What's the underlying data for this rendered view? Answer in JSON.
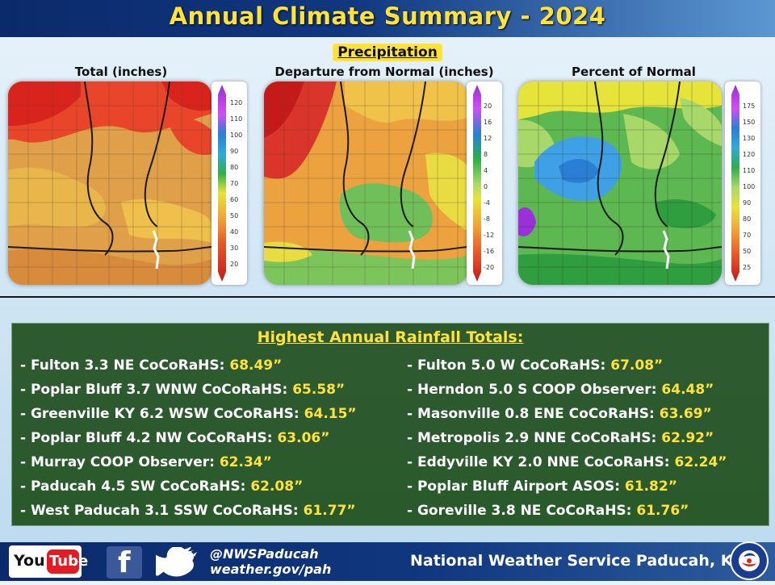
{
  "header": {
    "title": "Annual Climate Summary - 2024"
  },
  "precip_section": {
    "label": "Precipitation"
  },
  "maps": [
    {
      "title": "Total  (inches)",
      "legend_ticks": [
        "120",
        "110",
        "100",
        "90",
        "80",
        "70",
        "60",
        "50",
        "40",
        "30",
        "20"
      ]
    },
    {
      "title": "Departure  from Normal (inches)",
      "legend_ticks": [
        "20",
        "16",
        "12",
        "8",
        "4",
        "0",
        "-4",
        "-8",
        "-12",
        "-16",
        "-20"
      ]
    },
    {
      "title": "Percent of Normal",
      "legend_ticks": [
        "175",
        "150",
        "130",
        "120",
        "110",
        "100",
        "90",
        "80",
        "70",
        "50",
        "25"
      ]
    }
  ],
  "rainfall": {
    "title": "Highest Annual Rainfall Totals:",
    "left": [
      {
        "station": "- Fulton 3.3 NE CoCoRaHS: ",
        "value": "68.49”"
      },
      {
        "station": "- Poplar Bluff 3.7 WNW CoCoRaHS: ",
        "value": "65.58”"
      },
      {
        "station": "- Greenville KY 6.2 WSW CoCoRaHS: ",
        "value": "64.15”"
      },
      {
        "station": "- Poplar Bluff 4.2 NW CoCoRaHS: ",
        "value": "63.06”"
      },
      {
        "station": "- Murray COOP Observer: ",
        "value": "62.34”"
      },
      {
        "station": "- Paducah 4.5 SW CoCoRaHS: ",
        "value": "62.08”"
      },
      {
        "station": "- West Paducah 3.1 SSW CoCoRaHS: ",
        "value": "61.77”"
      }
    ],
    "right": [
      {
        "station": "- Fulton 5.0 W CoCoRaHS: ",
        "value": "67.08”"
      },
      {
        "station": "- Herndon 5.0 S COOP Observer: ",
        "value": "64.48”"
      },
      {
        "station": "- Masonville 0.8 ENE CoCoRaHS: ",
        "value": "63.69”"
      },
      {
        "station": "- Metropolis 2.9  NNE CoCoRaHS: ",
        "value": "62.92”"
      },
      {
        "station": "- Eddyville KY 2.0 NNE CoCoRaHS: ",
        "value": "62.24”"
      },
      {
        "station": "- Poplar Bluff Airport ASOS:  ",
        "value": "61.82”"
      },
      {
        "station": "- Goreville 3.8  NE CoCoRaHS: ",
        "value": "61.76”"
      }
    ]
  },
  "footer": {
    "youtube_you": "You",
    "youtube_tube": "Tube",
    "facebook_glyph": "f",
    "handle": "@NWSPaducah",
    "website": "weather.gov/pah",
    "office": "National Weather Service Paducah, KY",
    "logo_text": "NATIONAL WEATHER SERVICE"
  },
  "colors": {
    "title_yellow": "#ffe23a",
    "header_blue": "#0b2a6b",
    "panel_green": "#2e5a30"
  }
}
